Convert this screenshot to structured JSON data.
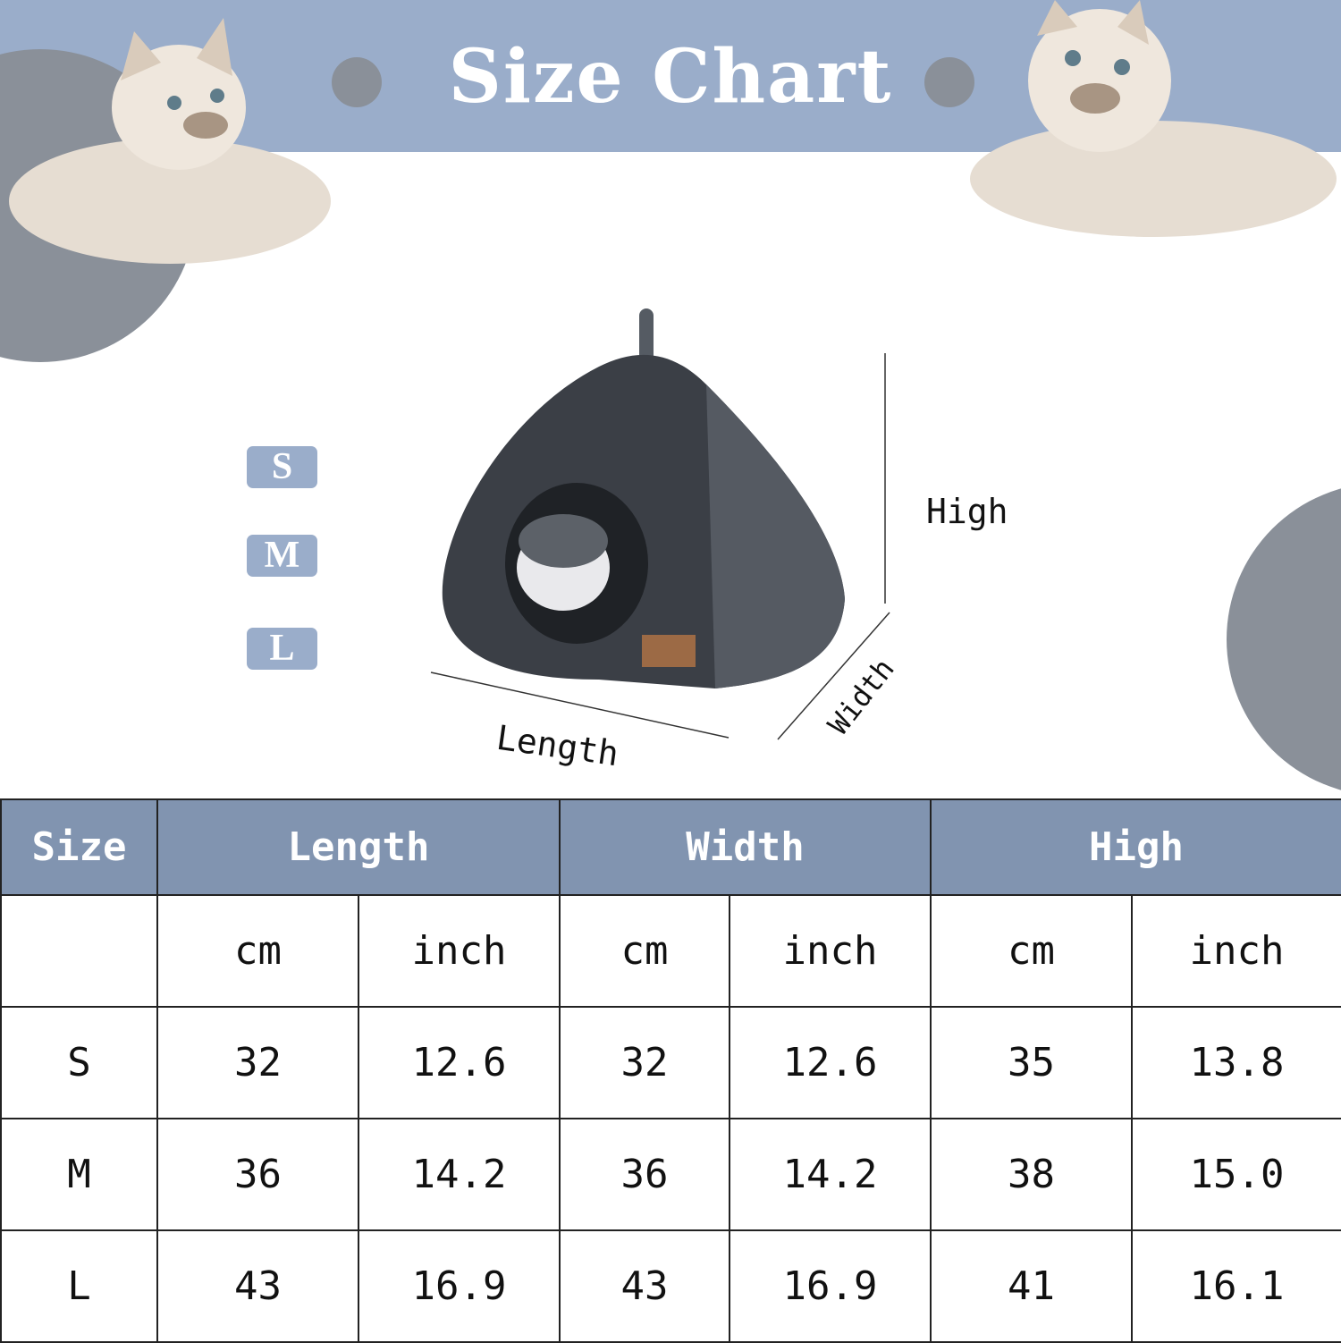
{
  "title": "Size Chart",
  "size_badges": [
    "S",
    "M",
    "L"
  ],
  "dimension_labels": {
    "high": "High",
    "length": "Length",
    "width": "Width"
  },
  "colors": {
    "band": "#9aadca",
    "table_header": "#8194b0",
    "circle": "#8a9099"
  },
  "table": {
    "headers": [
      "Size",
      "Length",
      "Width",
      "High"
    ],
    "units": [
      "cm",
      "inch",
      "cm",
      "inch",
      "cm",
      "inch"
    ],
    "rows": [
      {
        "size": "S",
        "values": [
          "32",
          "12.6",
          "32",
          "12.6",
          "35",
          "13.8"
        ]
      },
      {
        "size": "M",
        "values": [
          "36",
          "14.2",
          "36",
          "14.2",
          "38",
          "15.0"
        ]
      },
      {
        "size": "L",
        "values": [
          "43",
          "16.9",
          "43",
          "16.9",
          "41",
          "16.1"
        ]
      }
    ]
  }
}
